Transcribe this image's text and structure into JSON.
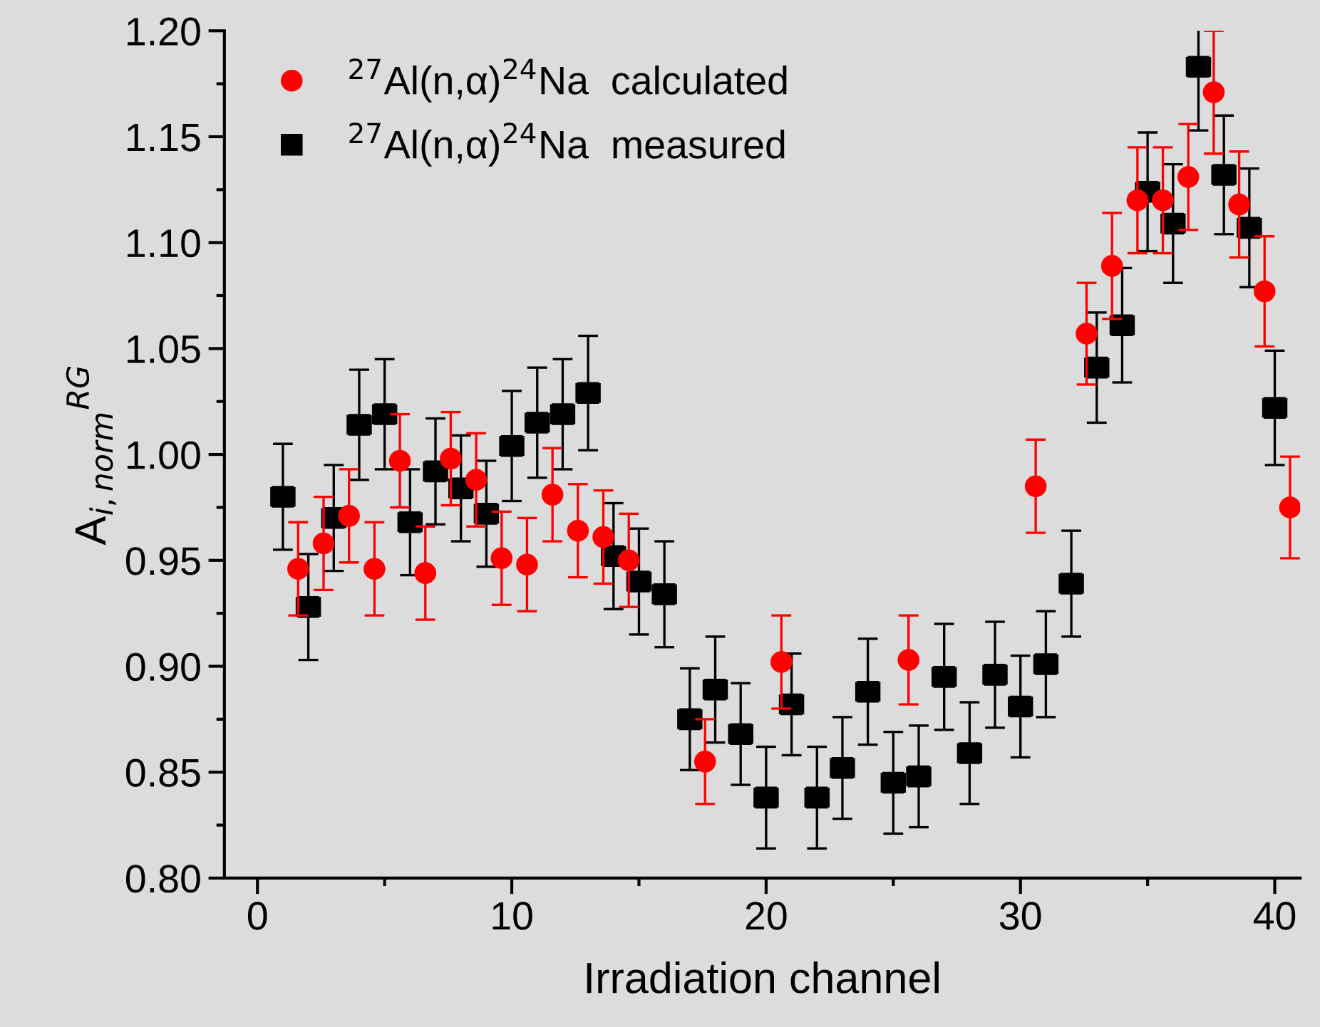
{
  "chart_data": {
    "type": "scatter",
    "xlabel": "Irradiation channel",
    "ylabel": "A$_{i,norm}$$^{RG}$",
    "xlim": [
      -1.3,
      41
    ],
    "xticks": [
      0,
      10,
      20,
      30,
      40
    ],
    "ylim": [
      0.8,
      1.2
    ],
    "yticks": [
      {
        "value": 0.8,
        "label": "0.80"
      },
      {
        "value": 0.85,
        "label": "0.85"
      },
      {
        "value": 0.9,
        "label": "0.90"
      },
      {
        "value": 0.95,
        "label": "0.95"
      },
      {
        "value": 1.0,
        "label": "1.00"
      },
      {
        "value": 1.05,
        "label": "1.05"
      },
      {
        "value": 1.1,
        "label": "1.10"
      },
      {
        "value": 1.15,
        "label": "1.15"
      },
      {
        "value": 1.2,
        "label": "1.20"
      }
    ],
    "grid": false,
    "legend": "top left",
    "series": [
      {
        "name": "$^{27}$Al(n,α)$^{24}$Na  calculated",
        "color": "#ff0000",
        "marker": "circle",
        "x": [
          1.6,
          2.6,
          3.6,
          4.6,
          5.6,
          6.6,
          7.6,
          8.6,
          9.6,
          10.6,
          11.6,
          12.6,
          13.6,
          14.6,
          17.6,
          20.6,
          25.6,
          30.6,
          32.6,
          33.6,
          34.6,
          35.6,
          36.6,
          37.6,
          38.6,
          39.6,
          40.6
        ],
        "values": [
          0.946,
          0.958,
          0.971,
          0.946,
          0.997,
          0.944,
          0.998,
          0.988,
          0.951,
          0.948,
          0.981,
          0.964,
          0.961,
          0.95,
          0.855,
          0.902,
          0.903,
          0.985,
          1.057,
          1.089,
          1.12,
          1.12,
          1.131,
          1.171,
          1.118,
          1.077,
          0.975
        ],
        "errors": [
          0.022,
          0.022,
          0.022,
          0.022,
          0.022,
          0.022,
          0.022,
          0.022,
          0.022,
          0.022,
          0.022,
          0.022,
          0.022,
          0.022,
          0.02,
          0.022,
          0.021,
          0.022,
          0.024,
          0.025,
          0.025,
          0.025,
          0.025,
          0.029,
          0.025,
          0.026,
          0.024
        ]
      },
      {
        "name": "$^{27}$Al(n,α)$^{24}$Na  measured",
        "color": "#000000",
        "marker": "square",
        "x": [
          1,
          2,
          3,
          4,
          5,
          6,
          7,
          8,
          9,
          10,
          11,
          12,
          13,
          14,
          15,
          16,
          17,
          18,
          19,
          20,
          21,
          22,
          23,
          24,
          25,
          26,
          27,
          28,
          29,
          30,
          31,
          32,
          33,
          34,
          35,
          36,
          37,
          38,
          39,
          40
        ],
        "values": [
          0.98,
          0.928,
          0.97,
          1.014,
          1.019,
          0.968,
          0.992,
          0.984,
          0.972,
          1.004,
          1.015,
          1.019,
          1.029,
          0.952,
          0.94,
          0.934,
          0.875,
          0.889,
          0.868,
          0.838,
          0.882,
          0.838,
          0.852,
          0.888,
          0.845,
          0.848,
          0.895,
          0.859,
          0.896,
          0.881,
          0.901,
          0.939,
          1.041,
          1.061,
          1.124,
          1.109,
          1.183,
          1.132,
          1.107,
          1.022
        ],
        "errors": [
          0.025,
          0.025,
          0.025,
          0.026,
          0.026,
          0.025,
          0.025,
          0.025,
          0.025,
          0.026,
          0.026,
          0.026,
          0.027,
          0.025,
          0.025,
          0.025,
          0.024,
          0.025,
          0.024,
          0.024,
          0.024,
          0.024,
          0.024,
          0.025,
          0.024,
          0.024,
          0.025,
          0.024,
          0.025,
          0.024,
          0.025,
          0.025,
          0.026,
          0.027,
          0.028,
          0.028,
          0.03,
          0.028,
          0.028,
          0.027
        ],
        "xerrors": [
          0.45,
          0.45,
          0.45,
          0.45,
          0.45,
          0.45,
          0.45,
          0.45,
          0.45,
          0.45,
          0.45,
          0.45,
          0.45,
          0.45,
          0.45,
          0.45,
          0.45,
          0.45,
          0.45,
          0.45,
          0.45,
          0.45,
          0.45,
          0.45,
          0.45,
          0.45,
          0.45,
          0.45,
          0.45,
          0.45,
          0.45,
          0.45,
          0.45,
          0.45,
          0.45,
          0.45,
          0.45,
          0.45,
          0.45,
          0.45
        ]
      }
    ]
  }
}
